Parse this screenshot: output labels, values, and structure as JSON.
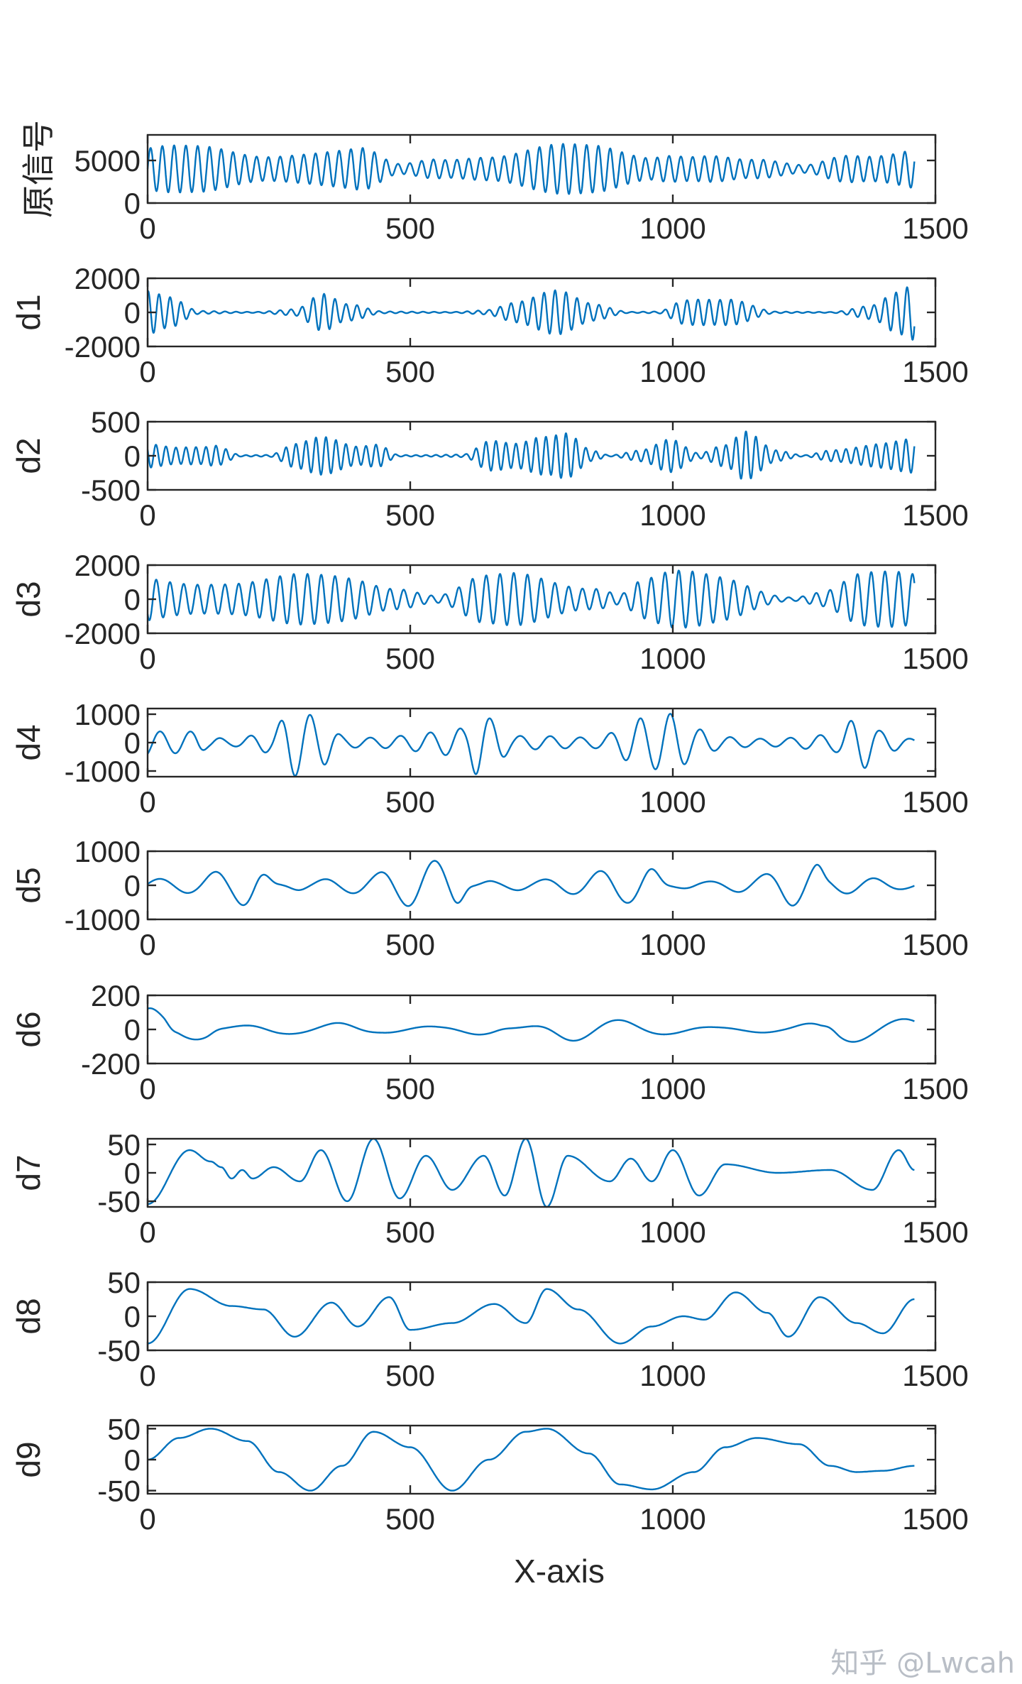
{
  "watermark": "知乎 @Lwcah",
  "chart_data": [
    {
      "type": "line",
      "ylabel": "原信号",
      "ylim": [
        0,
        8000
      ],
      "yticks": [
        "0",
        "5000"
      ],
      "xlim": [
        0,
        1500
      ],
      "xticks": [
        "0",
        "500",
        "1000",
        "1500"
      ],
      "xlabel": "",
      "series": [
        {
          "color": "#0072BD",
          "x": [
            0,
            100,
            200,
            300,
            400,
            480,
            560,
            650,
            750,
            850,
            950,
            1000,
            1050,
            1150,
            1250,
            1350,
            1460
          ],
          "envelope": [
            3200,
            2700,
            2200,
            3300,
            2800,
            600,
            1500,
            2700,
            3300,
            2800,
            2000,
            3000,
            2700,
            1200,
            500,
            2800,
            3400
          ],
          "center": 4000
        }
      ]
    },
    {
      "type": "line",
      "ylabel": "d1",
      "ylim": [
        -2000,
        2000
      ],
      "yticks": [
        "-2000",
        "0",
        "2000"
      ],
      "xlim": [
        0,
        1500
      ],
      "xticks": [
        "0",
        "500",
        "1000",
        "1500"
      ],
      "xlabel": "",
      "series": [
        {
          "color": "#0072BD",
          "x": [
            0,
            40,
            100,
            200,
            280,
            330,
            380,
            450,
            580,
            640,
            700,
            780,
            850,
            920,
            970,
            1020,
            1100,
            1200,
            1300,
            1380,
            1420,
            1460
          ],
          "envelope": [
            1300,
            900,
            100,
            60,
            300,
            1300,
            500,
            60,
            60,
            200,
            700,
            1300,
            600,
            60,
            100,
            1100,
            800,
            50,
            50,
            700,
            1500,
            1800
          ]
        }
      ]
    },
    {
      "type": "line",
      "ylabel": "d2",
      "ylim": [
        -500,
        500
      ],
      "yticks": [
        "-500",
        "0",
        "500"
      ],
      "xlim": [
        0,
        1500
      ],
      "xticks": [
        "0",
        "500",
        "1000",
        "1500"
      ],
      "xlabel": "",
      "series": [
        {
          "color": "#0072BD",
          "x": [
            0,
            50,
            100,
            130,
            180,
            230,
            280,
            330,
            400,
            440,
            480,
            600,
            650,
            700,
            760,
            800,
            850,
            880,
            940,
            990,
            1050,
            1100,
            1140,
            1200,
            1250,
            1300,
            1400,
            1460
          ],
          "envelope": [
            180,
            150,
            200,
            280,
            20,
            20,
            200,
            280,
            150,
            220,
            20,
            30,
            250,
            180,
            300,
            420,
            120,
            20,
            150,
            320,
            40,
            160,
            400,
            120,
            20,
            150,
            200,
            250
          ]
        }
      ]
    },
    {
      "type": "line",
      "ylabel": "d3",
      "ylim": [
        -2000,
        2000
      ],
      "yticks": [
        "-2000",
        "0",
        "2000"
      ],
      "xlim": [
        0,
        1500
      ],
      "xticks": [
        "0",
        "500",
        "1000",
        "1500"
      ],
      "xlabel": "",
      "series": [
        {
          "color": "#0072BD",
          "x": [
            0,
            100,
            200,
            300,
            400,
            470,
            550,
            640,
            720,
            850,
            900,
            940,
            1000,
            1100,
            1230,
            1280,
            1360,
            1460
          ],
          "envelope": [
            1600,
            1700,
            1300,
            1500,
            1700,
            1200,
            300,
            1400,
            1700,
            1200,
            500,
            1400,
            1700,
            1500,
            200,
            600,
            1600,
            1700
          ]
        }
      ]
    },
    {
      "type": "line",
      "ylabel": "d4",
      "ylim": [
        -1200,
        1200
      ],
      "yticks": [
        "-1000",
        "0",
        "1000"
      ],
      "xlim": [
        0,
        1500
      ],
      "xticks": [
        "0",
        "500",
        "1000",
        "1500"
      ],
      "xlabel": "",
      "series": [
        {
          "color": "#0072BD",
          "x": [
            0,
            40,
            90,
            120,
            160,
            230,
            280,
            330,
            380,
            450,
            530,
            600,
            630,
            660,
            700,
            760,
            850,
            950,
            1000,
            1050,
            1100,
            1200,
            1300,
            1360,
            1400,
            1460
          ],
          "envelope": [
            800,
            750,
            700,
            250,
            150,
            350,
            1300,
            1200,
            350,
            350,
            400,
            500,
            1200,
            900,
            350,
            450,
            300,
            900,
            1050,
            600,
            350,
            250,
            300,
            950,
            450,
            200
          ]
        }
      ]
    },
    {
      "type": "line",
      "ylabel": "d5",
      "ylim": [
        -1000,
        1000
      ],
      "yticks": [
        "-1000",
        "0",
        "1000"
      ],
      "xlim": [
        0,
        1500
      ],
      "xticks": [
        "0",
        "500",
        "1000",
        "1500"
      ],
      "xlabel": "",
      "series": [
        {
          "color": "#0072BD",
          "x": [
            0,
            80,
            150,
            200,
            250,
            300,
            360,
            420,
            470,
            520,
            580,
            620,
            660,
            720,
            800,
            900,
            950,
            1000,
            1050,
            1150,
            1230,
            1270,
            1300,
            1380,
            1460
          ],
          "envelope": [
            350,
            300,
            450,
            650,
            80,
            250,
            400,
            450,
            600,
            700,
            750,
            100,
            200,
            300,
            350,
            500,
            600,
            100,
            200,
            400,
            650,
            650,
            250,
            300,
            200
          ]
        }
      ]
    },
    {
      "type": "line",
      "ylabel": "d6",
      "ylim": [
        -200,
        200
      ],
      "yticks": [
        "-200",
        "0",
        "200"
      ],
      "xlim": [
        0,
        1500
      ],
      "xticks": [
        "0",
        "500",
        "1000",
        "1500"
      ],
      "xlabel": "",
      "series": [
        {
          "color": "#0072BD",
          "x": [
            0,
            30,
            60,
            110,
            150,
            250,
            350,
            450,
            550,
            650,
            700,
            800,
            900,
            1000,
            1100,
            1200,
            1280,
            1320,
            1380,
            1460
          ],
          "envelope": [
            180,
            160,
            60,
            60,
            20,
            50,
            60,
            20,
            20,
            60,
            20,
            70,
            60,
            50,
            20,
            20,
            40,
            120,
            120,
            110
          ]
        }
      ]
    },
    {
      "type": "line",
      "ylabel": "d7",
      "ylim": [
        -60,
        60
      ],
      "yticks": [
        "-50",
        "0",
        "50"
      ],
      "xlim": [
        0,
        1500
      ],
      "xticks": [
        "0",
        "500",
        "1000",
        "1500"
      ],
      "xlabel": "",
      "series": [
        {
          "color": "#0072BD",
          "x": [
            0,
            80,
            120,
            140,
            160,
            180,
            200,
            240,
            290,
            330,
            380,
            430,
            480,
            530,
            580,
            640,
            680,
            720,
            760,
            800,
            880,
            920,
            960,
            1000,
            1050,
            1100,
            1200,
            1300,
            1380,
            1430,
            1460
          ],
          "y": [
            -55,
            40,
            20,
            10,
            -10,
            5,
            -10,
            10,
            -15,
            40,
            -50,
            60,
            -45,
            30,
            -30,
            30,
            -40,
            60,
            -60,
            30,
            -15,
            25,
            -15,
            40,
            -40,
            15,
            0,
            5,
            -30,
            40,
            5
          ]
        }
      ]
    },
    {
      "type": "line",
      "ylabel": "d8",
      "ylim": [
        -50,
        50
      ],
      "yticks": [
        "-50",
        "0",
        "50"
      ],
      "xlim": [
        0,
        1500
      ],
      "xticks": [
        "0",
        "500",
        "1000",
        "1500"
      ],
      "xlabel": "",
      "series": [
        {
          "color": "#0072BD",
          "x": [
            0,
            80,
            160,
            220,
            280,
            350,
            400,
            460,
            500,
            580,
            660,
            720,
            760,
            820,
            900,
            960,
            1020,
            1060,
            1120,
            1180,
            1220,
            1280,
            1350,
            1400,
            1460
          ],
          "y": [
            -40,
            40,
            15,
            10,
            -30,
            20,
            -15,
            28,
            -20,
            -10,
            18,
            -10,
            40,
            10,
            -40,
            -15,
            0,
            -5,
            35,
            5,
            -30,
            28,
            -10,
            -25,
            25
          ]
        }
      ]
    },
    {
      "type": "line",
      "ylabel": "d9",
      "ylim": [
        -55,
        55
      ],
      "yticks": [
        "-50",
        "0",
        "50"
      ],
      "xlim": [
        0,
        1500
      ],
      "xticks": [
        "0",
        "500",
        "1000",
        "1500"
      ],
      "xlabel": "X-axis",
      "series": [
        {
          "color": "#0072BD",
          "x": [
            0,
            60,
            120,
            190,
            250,
            310,
            370,
            430,
            500,
            580,
            650,
            720,
            760,
            840,
            900,
            960,
            1040,
            1100,
            1160,
            1240,
            1300,
            1350,
            1400,
            1460
          ],
          "y": [
            0,
            35,
            50,
            30,
            -20,
            -50,
            -10,
            45,
            20,
            -50,
            0,
            45,
            50,
            10,
            -40,
            -48,
            -20,
            20,
            35,
            25,
            -10,
            -20,
            -18,
            -10
          ]
        }
      ]
    }
  ]
}
